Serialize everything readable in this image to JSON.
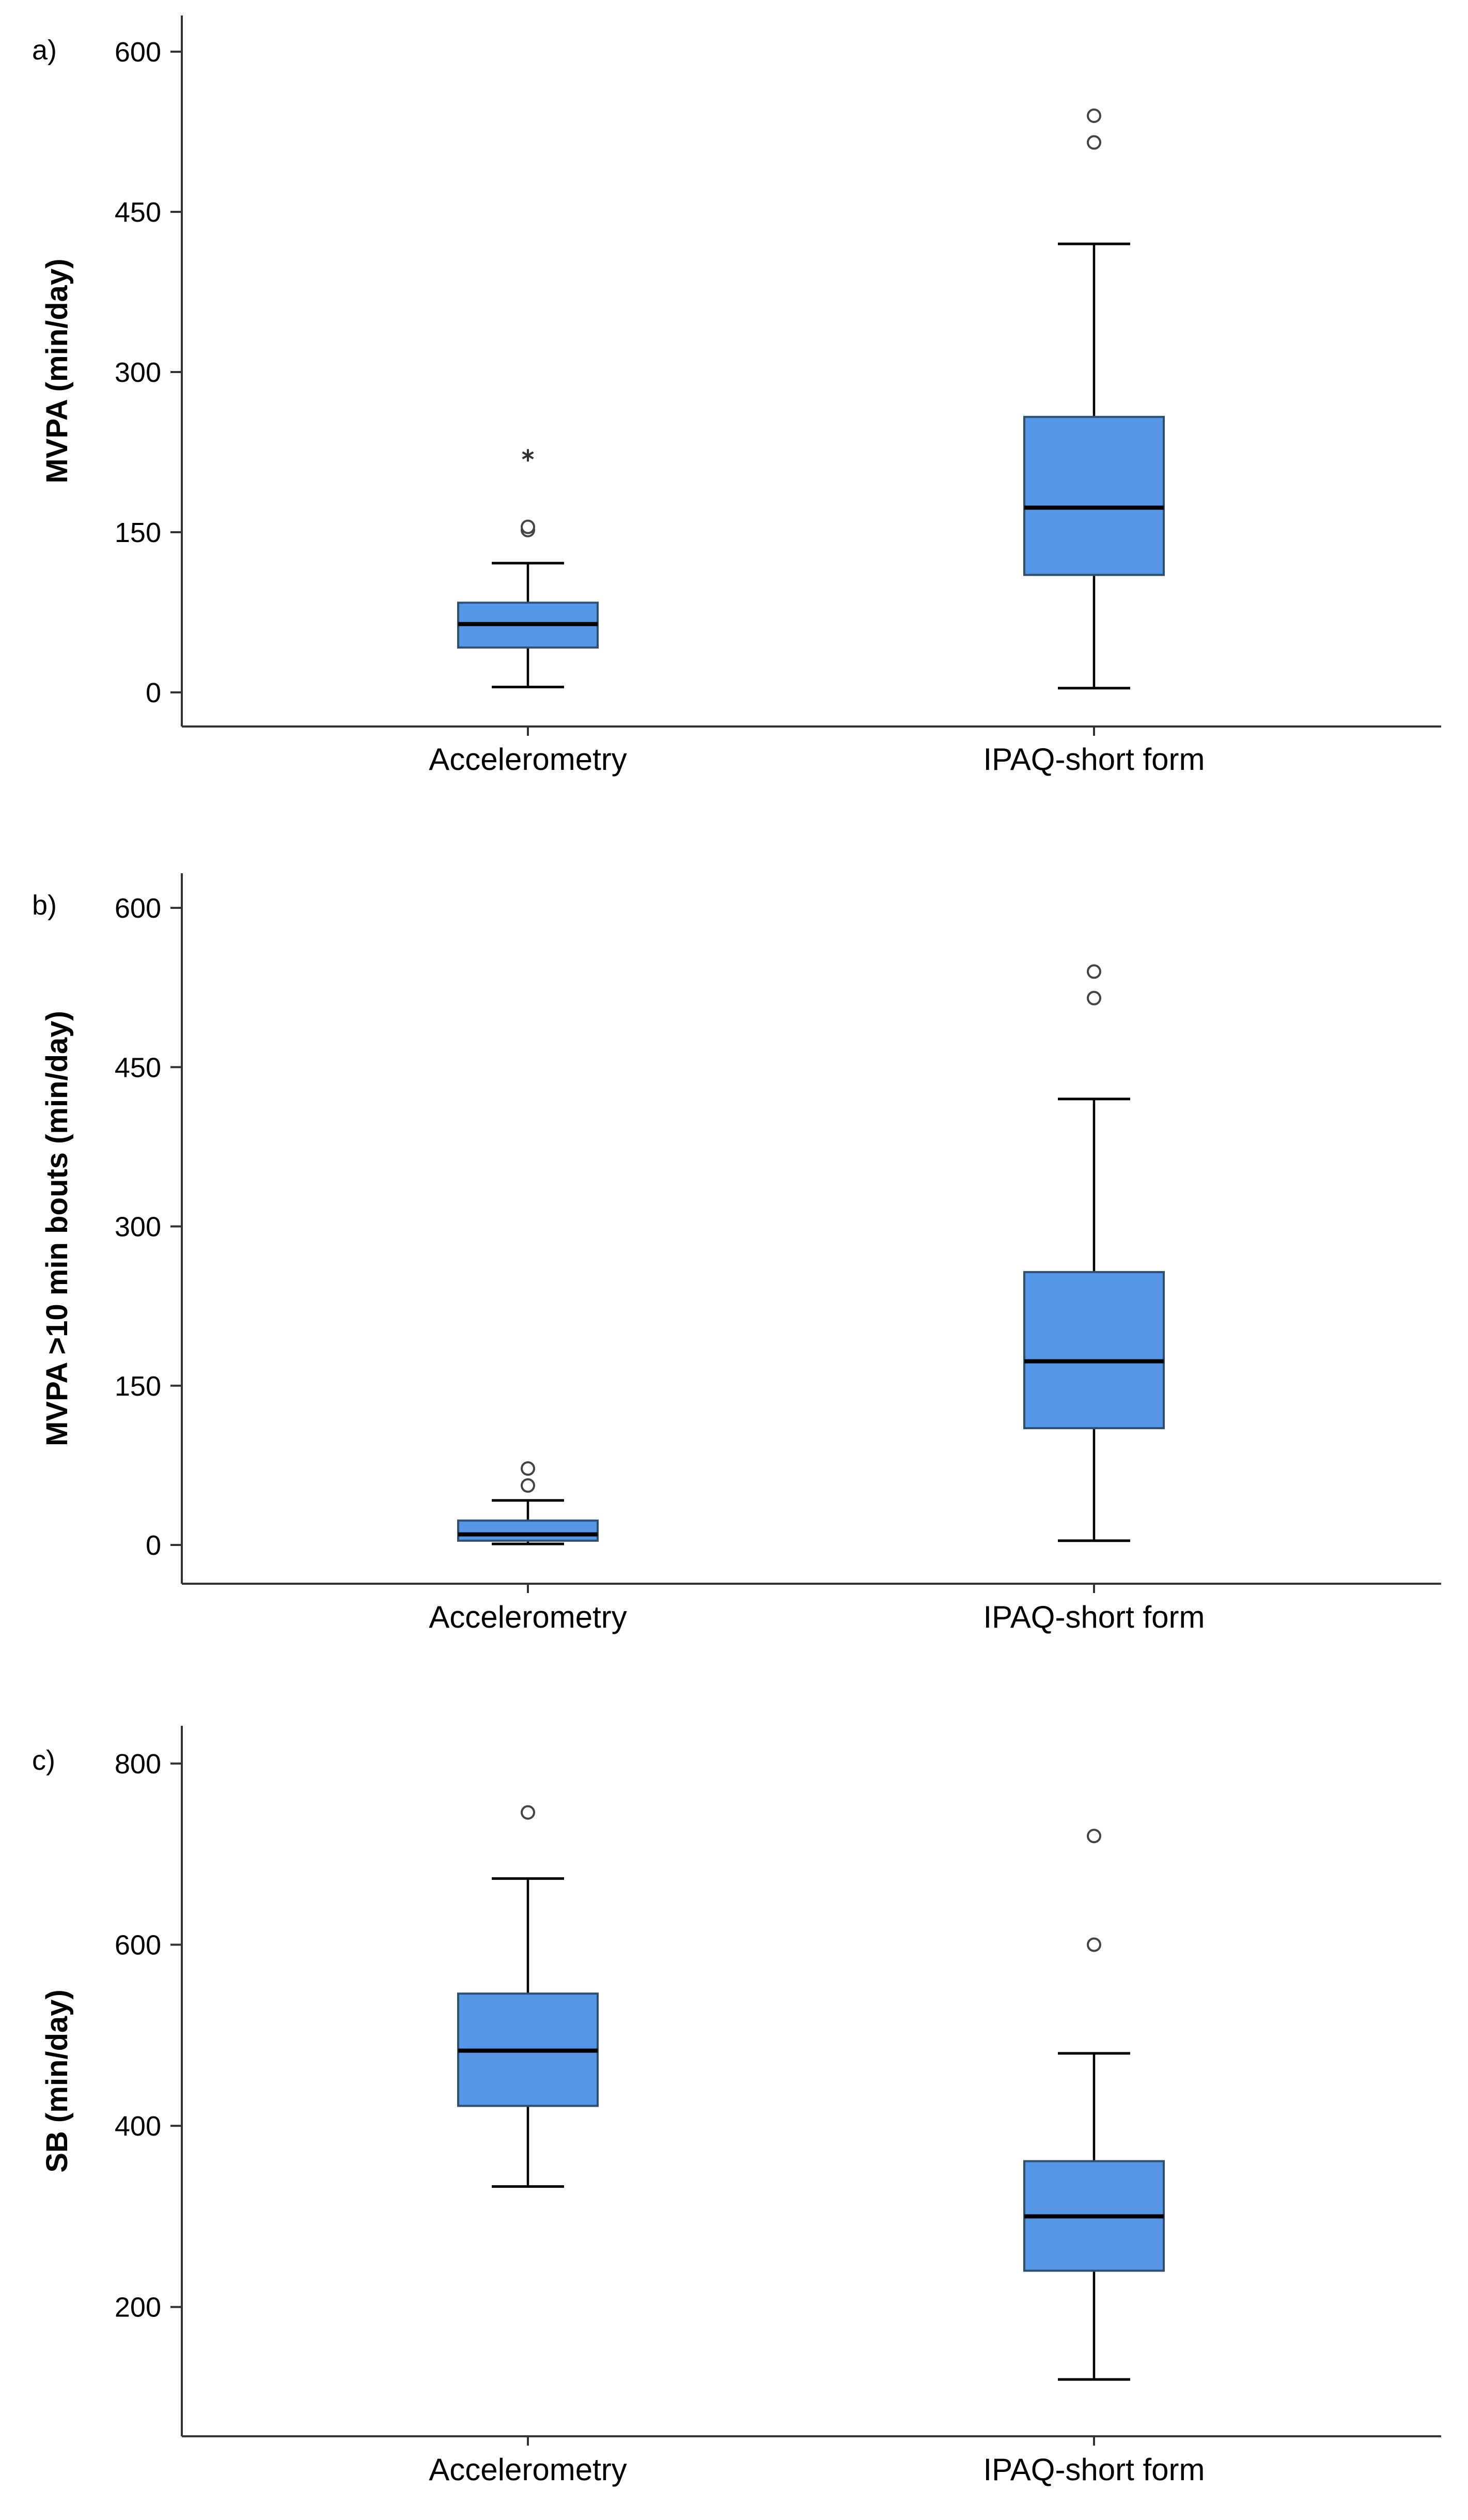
{
  "chart_data": [
    {
      "type": "box",
      "panel_label": "a)",
      "ylabel": "MVPA (min/day)",
      "ylim": [
        0,
        600
      ],
      "yticks": [
        0,
        150,
        300,
        450,
        600
      ],
      "categories": [
        "Accelerometry",
        "IPAQ-short form"
      ],
      "boxes": [
        {
          "category": "Accelerometry",
          "whisker_low": 5,
          "q1": 42,
          "median": 64,
          "q3": 84,
          "whisker_high": 121,
          "outliers": [
            152,
            155
          ],
          "extremes": [
            222
          ]
        },
        {
          "category": "IPAQ-short form",
          "whisker_low": 4,
          "q1": 110,
          "median": 173,
          "q3": 258,
          "whisker_high": 420,
          "outliers": [
            515,
            540
          ],
          "extremes": []
        }
      ],
      "box_color": "#5596E6"
    },
    {
      "type": "box",
      "panel_label": "b)",
      "ylabel": "MVPA >10 min bouts (min/day)",
      "ylim": [
        0,
        600
      ],
      "yticks": [
        0,
        150,
        300,
        450,
        600
      ],
      "categories": [
        "Accelerometry",
        "IPAQ-short form"
      ],
      "boxes": [
        {
          "category": "Accelerometry",
          "whisker_low": 1,
          "q1": 4,
          "median": 10,
          "q3": 23,
          "whisker_high": 42,
          "outliers": [
            56,
            72
          ],
          "extremes": []
        },
        {
          "category": "IPAQ-short form",
          "whisker_low": 4,
          "q1": 110,
          "median": 173,
          "q3": 257,
          "whisker_high": 420,
          "outliers": [
            515,
            540
          ],
          "extremes": []
        }
      ],
      "box_color": "#5596E6"
    },
    {
      "type": "box",
      "panel_label": "c)",
      "ylabel": "SB (min/day)",
      "ylim": [
        100,
        800
      ],
      "yticks": [
        200,
        400,
        600,
        800
      ],
      "categories": [
        "Accelerometry",
        "IPAQ-short form"
      ],
      "boxes": [
        {
          "category": "Accelerometry",
          "whisker_low": 333,
          "q1": 422,
          "median": 483,
          "q3": 546,
          "whisker_high": 673,
          "outliers": [
            746
          ],
          "extremes": []
        },
        {
          "category": "IPAQ-short form",
          "whisker_low": 120,
          "q1": 240,
          "median": 300,
          "q3": 361,
          "whisker_high": 480,
          "outliers": [
            600,
            720
          ],
          "extremes": []
        }
      ],
      "box_color": "#5596E6"
    }
  ]
}
